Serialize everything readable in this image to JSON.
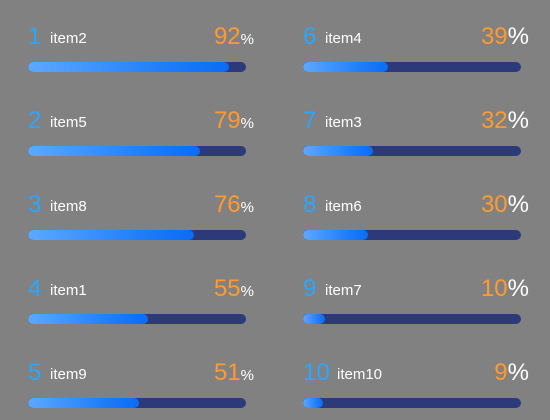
{
  "chart_data": {
    "type": "bar",
    "orientation": "horizontal",
    "categories": [
      "item2",
      "item5",
      "item8",
      "item1",
      "item9",
      "item4",
      "item3",
      "item6",
      "item7",
      "item10"
    ],
    "ranks": [
      "1",
      "2",
      "3",
      "4",
      "5",
      "6",
      "7",
      "8",
      "9",
      "10"
    ],
    "values": [
      92,
      79,
      76,
      55,
      51,
      39,
      32,
      30,
      10,
      9
    ],
    "unit": "%",
    "xlim": [
      0,
      100
    ],
    "title": "",
    "xlabel": "",
    "ylabel": "",
    "colors": {
      "rank": "#2aa7ff",
      "value": "#ff9a2e",
      "label": "#ffffff",
      "track": "#2c3a7a",
      "fill_start": "#5da8ff",
      "fill_end": "#0a6cf5",
      "background": "#818181"
    }
  }
}
